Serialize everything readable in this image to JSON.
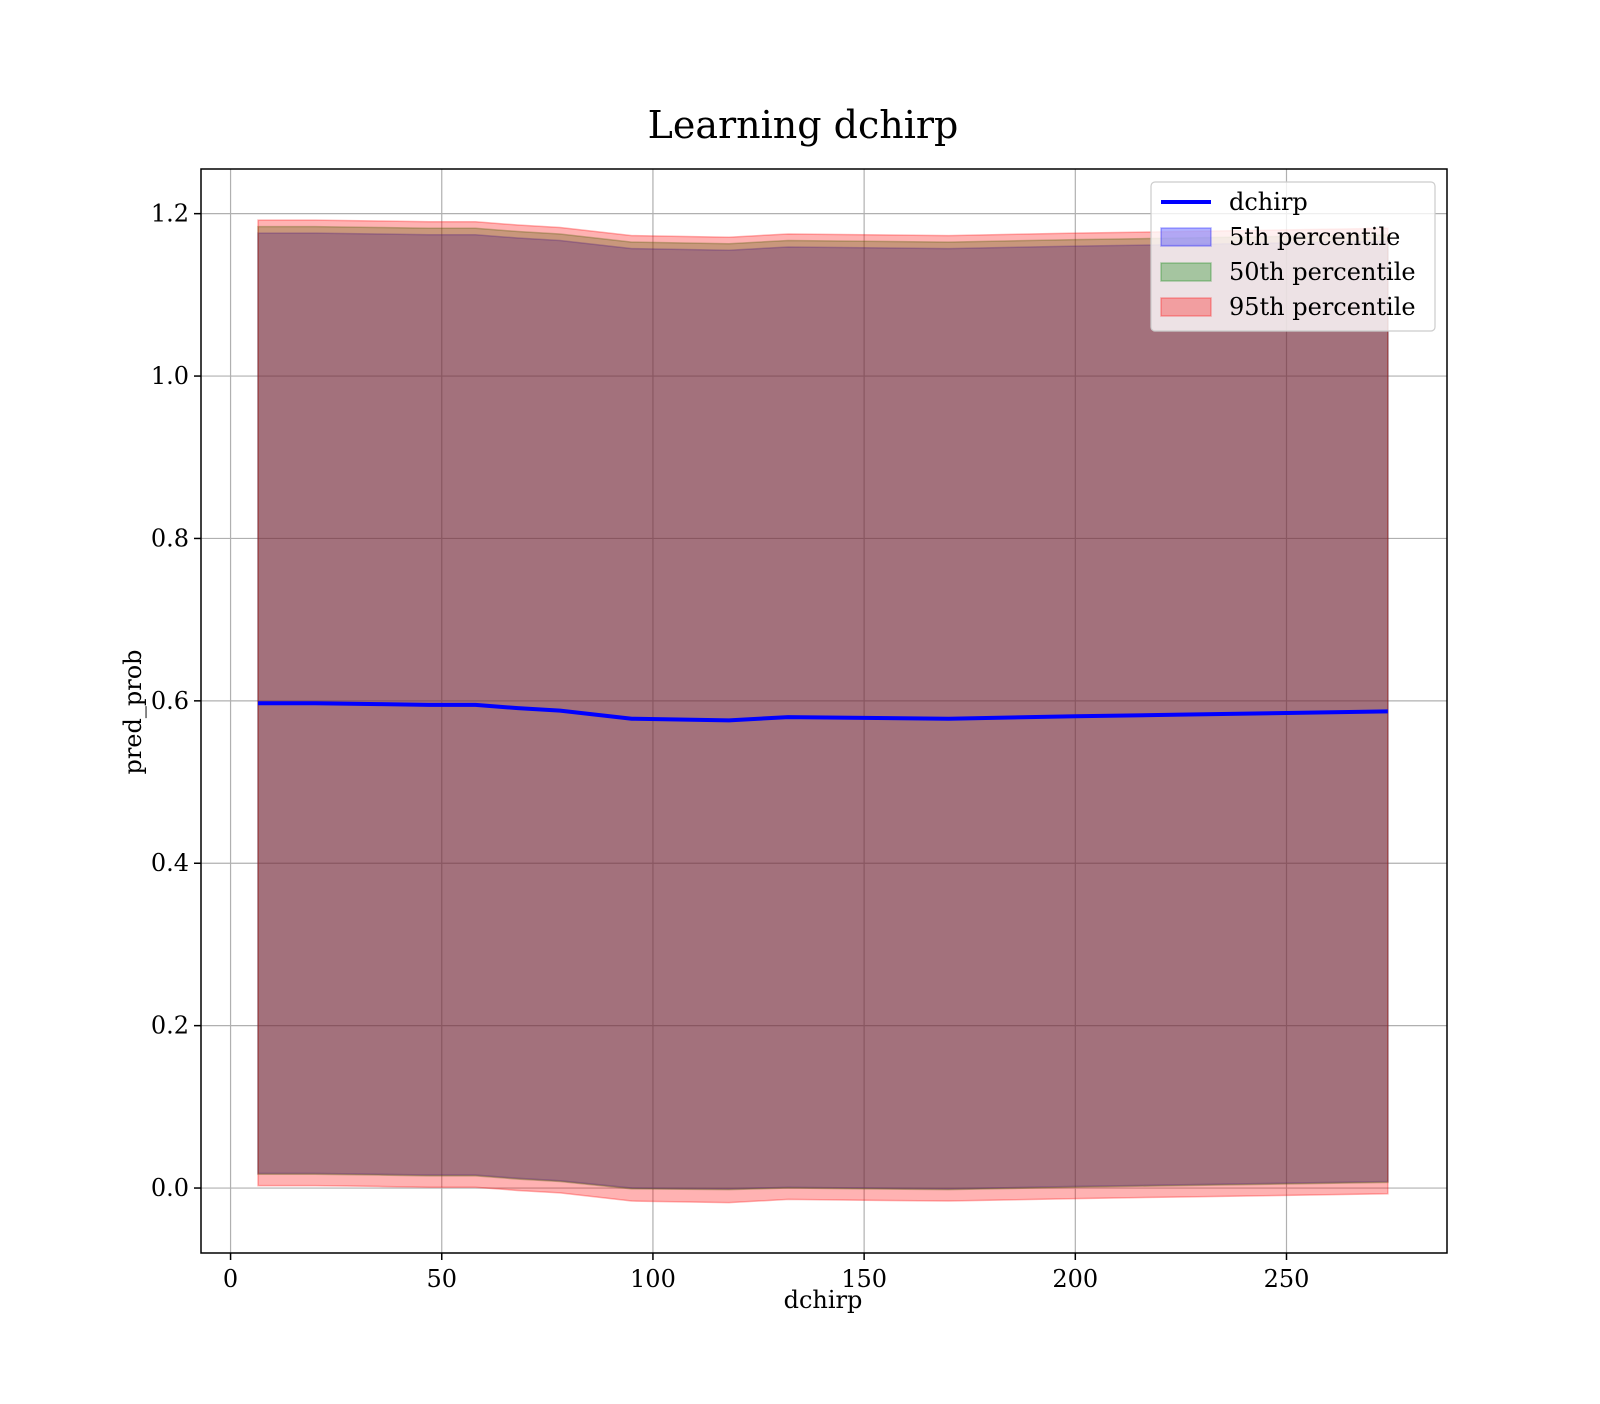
{
  "chart_data": {
    "type": "area",
    "title": "Learning dchirp",
    "xlabel": "dchirp",
    "ylabel": "pred_prob",
    "xlim": [
      -7,
      288
    ],
    "ylim": [
      -0.08,
      1.255
    ],
    "xticks": [
      0,
      50,
      100,
      150,
      200,
      250
    ],
    "xtick_labels": [
      "0",
      "50",
      "100",
      "150",
      "200",
      "250"
    ],
    "yticks": [
      0.0,
      0.2,
      0.4,
      0.6,
      0.8,
      1.0,
      1.2
    ],
    "ytick_labels": [
      "0.0",
      "0.2",
      "0.4",
      "0.6",
      "0.8",
      "1.0",
      "1.2"
    ],
    "grid": true,
    "legend_position": "top-right",
    "x": [
      6.5,
      20,
      35,
      47,
      58,
      68,
      78,
      95,
      118,
      132,
      150,
      170,
      200,
      225,
      250,
      274
    ],
    "line": {
      "name": "dchirp",
      "color": "#0000ff",
      "values": [
        0.597,
        0.597,
        0.596,
        0.595,
        0.595,
        0.591,
        0.588,
        0.578,
        0.576,
        0.58,
        0.579,
        0.578,
        0.581,
        0.583,
        0.585,
        0.587
      ]
    },
    "bands": [
      {
        "name": "5th percentile",
        "color": "#0000ff",
        "lower": [
          0.018,
          0.018,
          0.017,
          0.016,
          0.016,
          0.012,
          0.009,
          0.0,
          -0.001,
          0.001,
          0.0,
          -0.001,
          0.002,
          0.004,
          0.006,
          0.008
        ],
        "upper": [
          1.176,
          1.176,
          1.175,
          1.174,
          1.174,
          1.17,
          1.167,
          1.157,
          1.155,
          1.159,
          1.158,
          1.157,
          1.16,
          1.162,
          1.164,
          1.166
        ]
      },
      {
        "name": "50th percentile",
        "color": "#008000",
        "lower": [
          0.017,
          0.017,
          0.016,
          0.015,
          0.015,
          0.011,
          0.008,
          -0.001,
          -0.002,
          0.0,
          -0.001,
          -0.002,
          0.001,
          0.003,
          0.005,
          0.007
        ],
        "upper": [
          1.184,
          1.184,
          1.183,
          1.182,
          1.182,
          1.178,
          1.175,
          1.165,
          1.163,
          1.167,
          1.166,
          1.165,
          1.168,
          1.17,
          1.172,
          1.174
        ]
      },
      {
        "name": "95th percentile",
        "color": "#ff0000",
        "lower": [
          0.003,
          0.003,
          0.002,
          0.001,
          0.001,
          -0.003,
          -0.006,
          -0.016,
          -0.018,
          -0.014,
          -0.015,
          -0.016,
          -0.013,
          -0.011,
          -0.009,
          -0.007
        ],
        "upper": [
          1.192,
          1.192,
          1.191,
          1.19,
          1.19,
          1.186,
          1.183,
          1.173,
          1.171,
          1.175,
          1.174,
          1.173,
          1.176,
          1.178,
          1.18,
          1.182
        ]
      }
    ]
  }
}
